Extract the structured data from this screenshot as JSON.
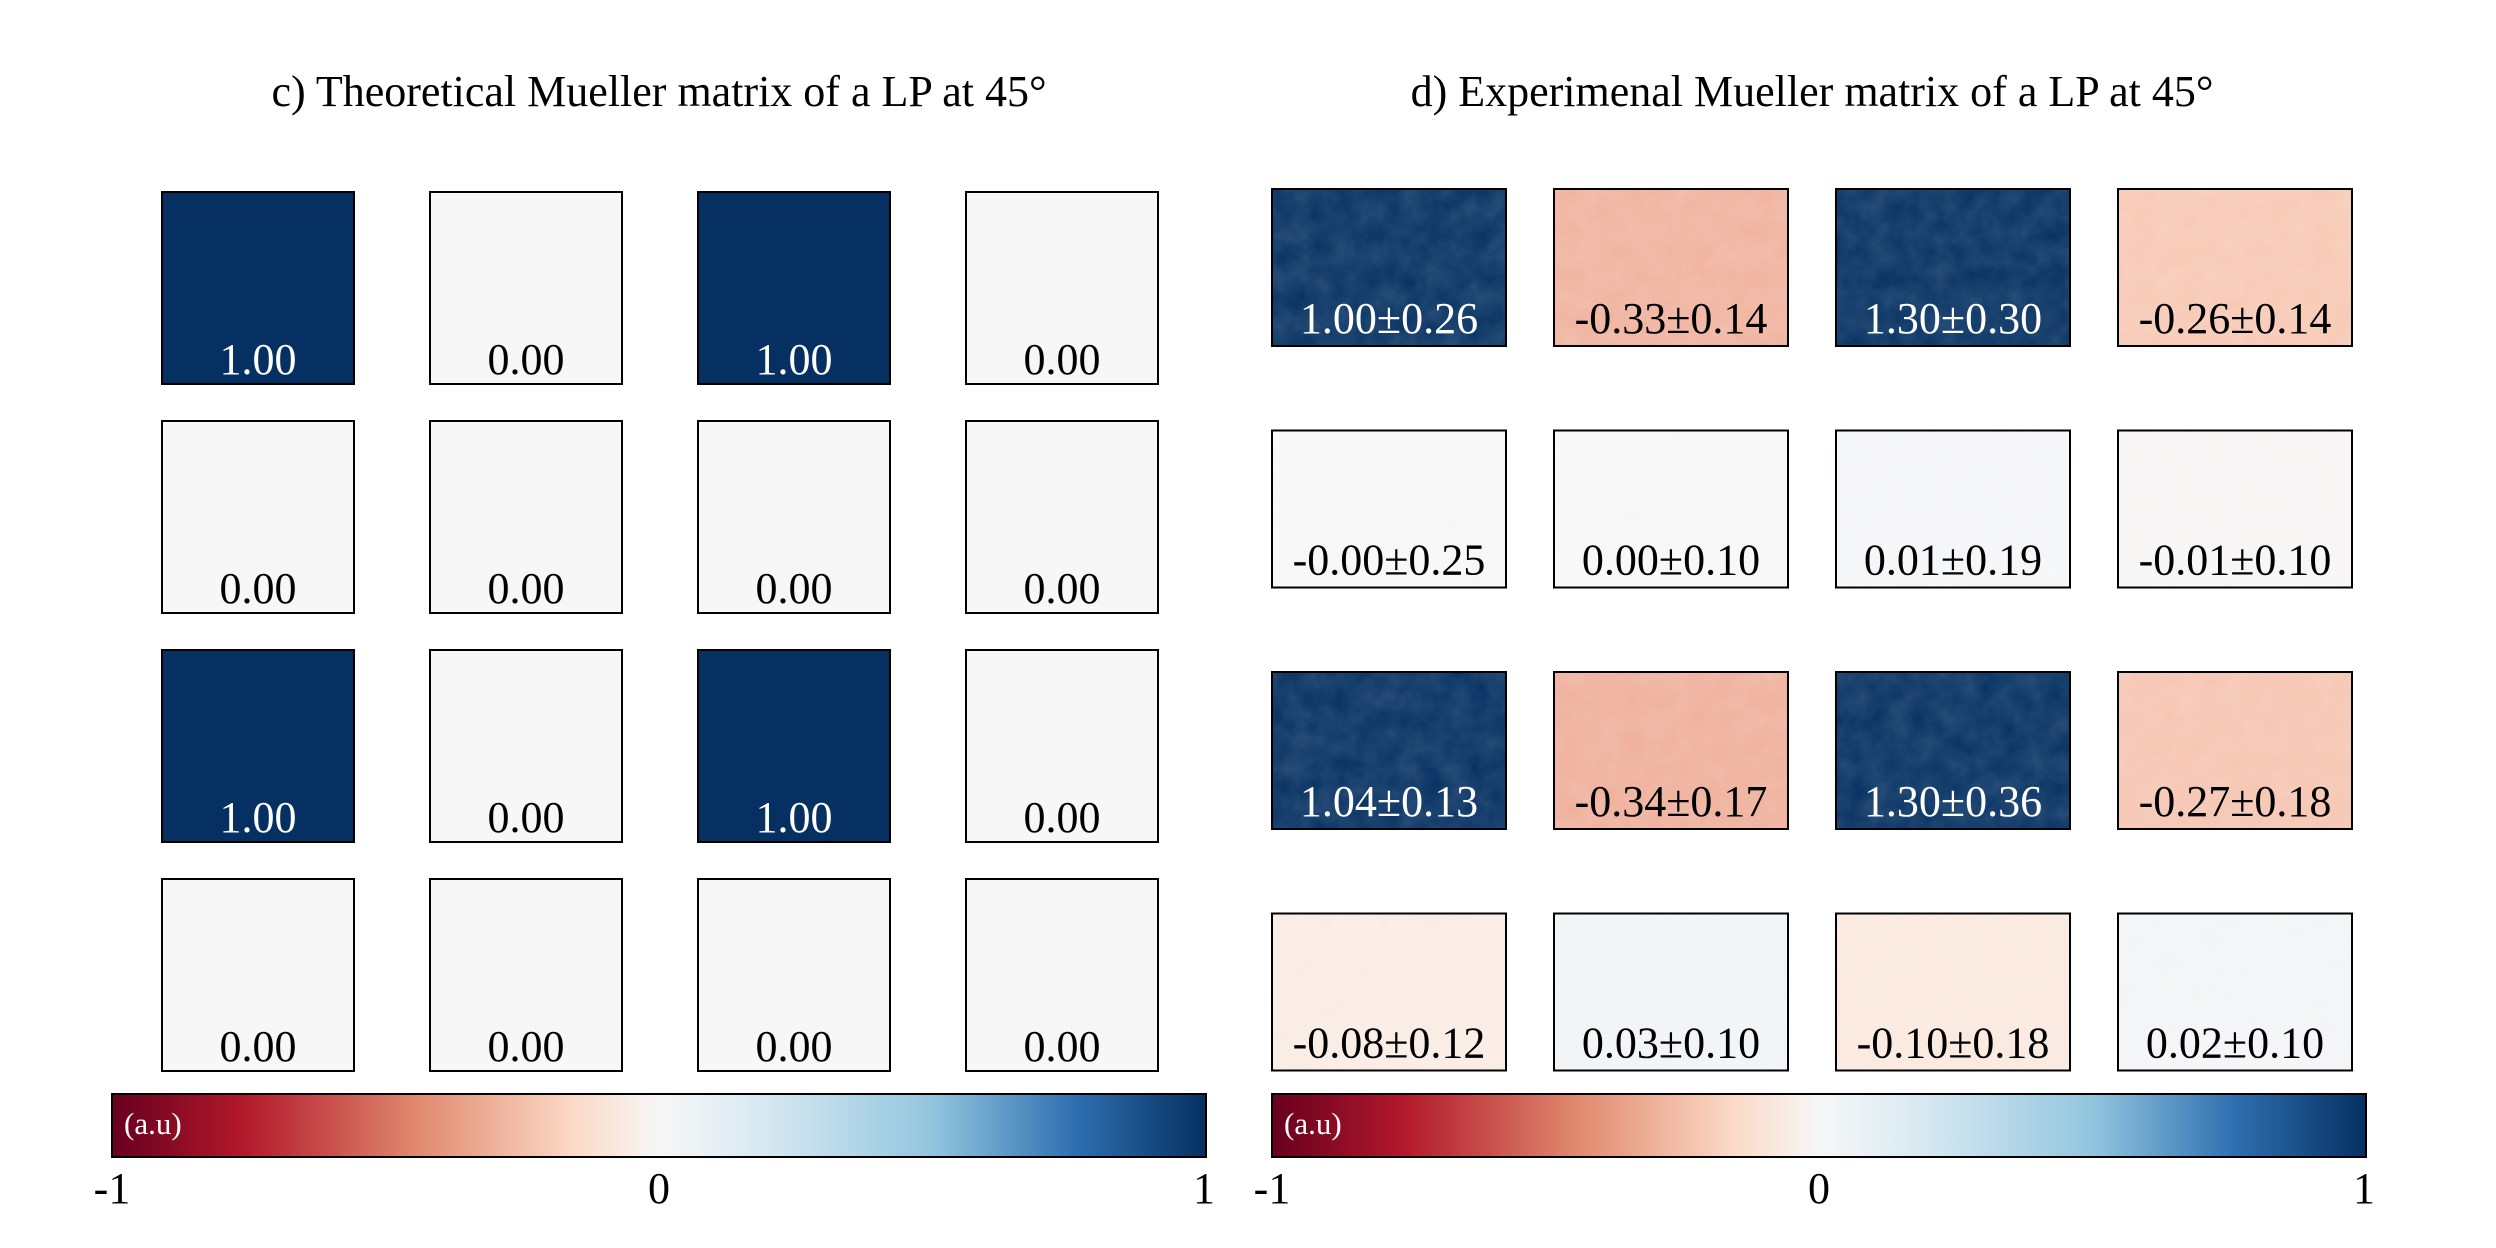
{
  "chart_data": [
    {
      "type": "heatmap",
      "title": "c) Theoretical Mueller matrix of a LP at 45°",
      "rows": 4,
      "cols": 4,
      "value_range": [
        -1,
        1
      ],
      "values": [
        [
          1.0,
          0.0,
          1.0,
          0.0
        ],
        [
          0.0,
          0.0,
          0.0,
          0.0
        ],
        [
          1.0,
          0.0,
          1.0,
          0.0
        ],
        [
          0.0,
          0.0,
          0.0,
          0.0
        ]
      ],
      "labels": [
        [
          "1.00",
          "0.00",
          "1.00",
          "0.00"
        ],
        [
          "0.00",
          "0.00",
          "0.00",
          "0.00"
        ],
        [
          "1.00",
          "0.00",
          "1.00",
          "0.00"
        ],
        [
          "0.00",
          "0.00",
          "0.00",
          "0.00"
        ]
      ],
      "colorbar": {
        "unit": "(a.u)",
        "ticks": [
          "-1",
          "0",
          "1"
        ],
        "colormap": "red-white-blue"
      }
    },
    {
      "type": "heatmap",
      "title": "d) Experimenal Mueller matrix of a LP at 45°",
      "rows": 4,
      "cols": 4,
      "value_range": [
        -1,
        1
      ],
      "means": [
        [
          1.0,
          -0.33,
          1.3,
          -0.26
        ],
        [
          -0.0,
          0.0,
          0.01,
          -0.01
        ],
        [
          1.04,
          -0.34,
          1.3,
          -0.27
        ],
        [
          -0.08,
          0.03,
          -0.1,
          0.02
        ]
      ],
      "stds": [
        [
          0.26,
          0.14,
          0.3,
          0.14
        ],
        [
          0.25,
          0.1,
          0.19,
          0.1
        ],
        [
          0.13,
          0.17,
          0.36,
          0.18
        ],
        [
          0.12,
          0.1,
          0.18,
          0.1
        ]
      ],
      "labels": [
        [
          "1.00±0.26",
          "-0.33±0.14",
          "1.30±0.30",
          "-0.26±0.14"
        ],
        [
          "-0.00±0.25",
          "0.00±0.10",
          "0.01±0.19",
          "-0.01±0.10"
        ],
        [
          "1.04±0.13",
          "-0.34±0.17",
          "1.30±0.36",
          "-0.27±0.18"
        ],
        [
          "-0.08±0.12",
          "0.03±0.10",
          "-0.10±0.18",
          "0.02±0.10"
        ]
      ],
      "colorbar": {
        "unit": "(a.u)",
        "ticks": [
          "-1",
          "0",
          "1"
        ],
        "colormap": "red-white-blue"
      }
    }
  ],
  "colors": {
    "neg_end": "#67001f",
    "neg_mid": "#d6604d",
    "neg_light": "#fddbc7",
    "zero": "#f7f7f7",
    "pos_light": "#d1e5f0",
    "pos_mid": "#4393c3",
    "pos_end": "#053061",
    "border": "#000000"
  }
}
